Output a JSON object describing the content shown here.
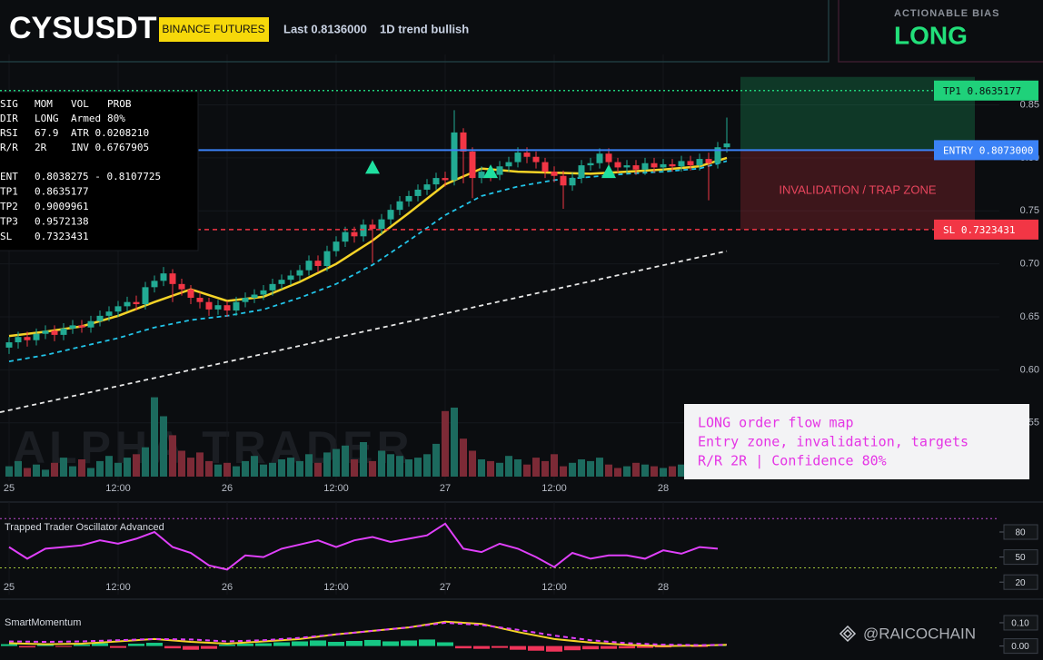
{
  "header": {
    "symbol": "CYSUSDT",
    "exchange": "BINANCE FUTURES",
    "last": "Last 0.8136000",
    "trend": "1D trend bullish",
    "bias_label": "ACTIONABLE BIAS",
    "bias": "LONG"
  },
  "info_panel": {
    "rows": [
      [
        "SIG",
        "MOM",
        "VOL",
        "PROB"
      ],
      [
        "DIR",
        "LONG",
        "Armed",
        "80%"
      ],
      [
        "RSI",
        "67.9",
        "ATR 0.0208210"
      ],
      [
        "R/R",
        "2R",
        "INV 0.6767905"
      ],
      [
        "ENT",
        "0.8038275 - 0.8107725"
      ],
      [
        "TP1",
        "0.8635177"
      ],
      [
        "TP2",
        "0.9009961"
      ],
      [
        "TP3",
        "0.9572138"
      ],
      [
        "SL",
        "0.7323431"
      ]
    ]
  },
  "annotation": {
    "lines": [
      "LONG order flow map",
      "Entry zone, invalidation, targets",
      "R/R 2R | Confidence 80%"
    ]
  },
  "watermark": "ALPHA TRADER",
  "footer_watermark": "@RAICOCHAIN",
  "chart_data": [
    {
      "type": "candlestick",
      "x": [
        0,
        1,
        2,
        3,
        4,
        5,
        6,
        7,
        8,
        9,
        10,
        11,
        12,
        13,
        14,
        15,
        16,
        17,
        18,
        19,
        20,
        21,
        22,
        23,
        24,
        25,
        26,
        27,
        28,
        29,
        30,
        31,
        32,
        33,
        34,
        35,
        36,
        37,
        38,
        39,
        40,
        41,
        42,
        43,
        44,
        45,
        46,
        47,
        48,
        49,
        50,
        51,
        52,
        53,
        54,
        55,
        56,
        57,
        58,
        59,
        60,
        61,
        62,
        63,
        64,
        65,
        66,
        67,
        68,
        69,
        70,
        71,
        72,
        73,
        74,
        75,
        76,
        77,
        78,
        79
      ],
      "open": [
        0.621,
        0.626,
        0.631,
        0.628,
        0.634,
        0.637,
        0.633,
        0.639,
        0.642,
        0.64,
        0.646,
        0.651,
        0.655,
        0.66,
        0.664,
        0.662,
        0.678,
        0.684,
        0.691,
        0.681,
        0.676,
        0.668,
        0.664,
        0.657,
        0.661,
        0.656,
        0.664,
        0.668,
        0.671,
        0.675,
        0.681,
        0.685,
        0.689,
        0.694,
        0.703,
        0.698,
        0.712,
        0.721,
        0.73,
        0.726,
        0.737,
        0.733,
        0.742,
        0.751,
        0.759,
        0.764,
        0.77,
        0.775,
        0.781,
        0.779,
        0.824,
        0.806,
        0.781,
        0.787,
        0.784,
        0.792,
        0.796,
        0.805,
        0.801,
        0.796,
        0.787,
        0.783,
        0.774,
        0.781,
        0.793,
        0.795,
        0.804,
        0.796,
        0.791,
        0.793,
        0.789,
        0.795,
        0.791,
        0.794,
        0.792,
        0.797,
        0.793,
        0.799,
        0.795,
        0.81
      ],
      "high": [
        0.631,
        0.636,
        0.636,
        0.639,
        0.642,
        0.642,
        0.644,
        0.647,
        0.647,
        0.651,
        0.656,
        0.66,
        0.665,
        0.669,
        0.67,
        0.683,
        0.689,
        0.697,
        0.695,
        0.686,
        0.68,
        0.673,
        0.668,
        0.666,
        0.665,
        0.669,
        0.673,
        0.676,
        0.68,
        0.686,
        0.69,
        0.694,
        0.699,
        0.708,
        0.708,
        0.717,
        0.726,
        0.735,
        0.735,
        0.742,
        0.742,
        0.747,
        0.756,
        0.764,
        0.769,
        0.775,
        0.78,
        0.786,
        0.787,
        0.845,
        0.828,
        0.81,
        0.792,
        0.792,
        0.797,
        0.801,
        0.81,
        0.81,
        0.806,
        0.8,
        0.792,
        0.788,
        0.786,
        0.798,
        0.8,
        0.809,
        0.809,
        0.8,
        0.798,
        0.798,
        0.8,
        0.8,
        0.799,
        0.799,
        0.802,
        0.802,
        0.804,
        0.805,
        0.815,
        0.838
      ],
      "low": [
        0.615,
        0.62,
        0.622,
        0.623,
        0.629,
        0.627,
        0.628,
        0.634,
        0.635,
        0.635,
        0.641,
        0.646,
        0.65,
        0.655,
        0.656,
        0.657,
        0.673,
        0.679,
        0.664,
        0.67,
        0.662,
        0.658,
        0.651,
        0.652,
        0.65,
        0.651,
        0.659,
        0.663,
        0.666,
        0.67,
        0.676,
        0.68,
        0.684,
        0.689,
        0.692,
        0.693,
        0.707,
        0.716,
        0.72,
        0.721,
        0.701,
        0.728,
        0.737,
        0.746,
        0.754,
        0.759,
        0.765,
        0.77,
        0.773,
        0.774,
        0.776,
        0.762,
        0.776,
        0.778,
        0.779,
        0.787,
        0.791,
        0.795,
        0.79,
        0.781,
        0.777,
        0.752,
        0.769,
        0.776,
        0.788,
        0.79,
        0.791,
        0.786,
        0.786,
        0.784,
        0.784,
        0.786,
        0.786,
        0.787,
        0.787,
        0.788,
        0.788,
        0.76,
        0.79,
        0.805
      ],
      "close": [
        0.626,
        0.631,
        0.628,
        0.634,
        0.637,
        0.633,
        0.639,
        0.642,
        0.64,
        0.646,
        0.651,
        0.655,
        0.66,
        0.664,
        0.662,
        0.678,
        0.684,
        0.691,
        0.681,
        0.676,
        0.668,
        0.664,
        0.657,
        0.661,
        0.656,
        0.664,
        0.668,
        0.671,
        0.675,
        0.681,
        0.685,
        0.689,
        0.694,
        0.703,
        0.698,
        0.712,
        0.721,
        0.73,
        0.726,
        0.737,
        0.733,
        0.742,
        0.751,
        0.759,
        0.764,
        0.77,
        0.775,
        0.781,
        0.779,
        0.824,
        0.806,
        0.781,
        0.787,
        0.784,
        0.792,
        0.796,
        0.805,
        0.801,
        0.796,
        0.787,
        0.783,
        0.774,
        0.781,
        0.793,
        0.795,
        0.804,
        0.796,
        0.791,
        0.793,
        0.789,
        0.795,
        0.791,
        0.794,
        0.792,
        0.797,
        0.793,
        0.799,
        0.795,
        0.81,
        0.8136
      ],
      "colors": {
        "up": "#22ab94",
        "down": "#f23645"
      },
      "volume": {
        "values": [
          12,
          18,
          10,
          14,
          8,
          16,
          22,
          12,
          20,
          10,
          18,
          24,
          16,
          22,
          26,
          34,
          92,
          70,
          48,
          30,
          22,
          28,
          18,
          14,
          16,
          12,
          18,
          24,
          14,
          16,
          20,
          22,
          18,
          26,
          16,
          28,
          32,
          36,
          20,
          40,
          18,
          30,
          26,
          24,
          20,
          22,
          26,
          38,
          76,
          80,
          44,
          30,
          20,
          18,
          16,
          24,
          20,
          14,
          22,
          18,
          26,
          12,
          16,
          20,
          18,
          22,
          14,
          10,
          12,
          16,
          14,
          12,
          10,
          12,
          14,
          10,
          12,
          14,
          10,
          12
        ],
        "up_color": "#1c6a5e",
        "down_color": "#7c2a36"
      },
      "lines": [
        {
          "color": "#e8e8e8",
          "style": "dashed",
          "x": [
            -1,
            79
          ],
          "values": [
            0.56,
            0.712
          ]
        },
        {
          "color": "#22c4e8",
          "style": "dashed",
          "x": [
            0,
            4,
            8,
            12,
            16,
            20,
            24,
            28,
            32,
            36,
            40,
            44,
            48,
            52,
            56,
            60,
            64,
            68,
            72,
            76,
            79
          ],
          "values": [
            0.608,
            0.614,
            0.622,
            0.63,
            0.64,
            0.647,
            0.651,
            0.657,
            0.668,
            0.681,
            0.699,
            0.722,
            0.746,
            0.764,
            0.773,
            0.779,
            0.782,
            0.785,
            0.787,
            0.79,
            0.797
          ]
        },
        {
          "color": "#f5d327",
          "style": "solid",
          "x": [
            0,
            4,
            8,
            12,
            16,
            20,
            24,
            28,
            32,
            36,
            40,
            44,
            48,
            52,
            56,
            60,
            64,
            68,
            72,
            76,
            79
          ],
          "values": [
            0.632,
            0.636,
            0.641,
            0.651,
            0.664,
            0.676,
            0.665,
            0.669,
            0.683,
            0.7,
            0.722,
            0.748,
            0.775,
            0.79,
            0.787,
            0.786,
            0.785,
            0.787,
            0.789,
            0.792,
            0.8
          ]
        }
      ],
      "signals": {
        "x": [
          40,
          53,
          66
        ],
        "values": [
          0.791,
          0.787,
          0.787
        ],
        "color": "#1fe0a0"
      },
      "levels": [
        {
          "name": "TP1",
          "value": 0.8635177,
          "value_label": "0.8635177",
          "color": "#1fd17a",
          "style": "dotted"
        },
        {
          "name": "ENTRY",
          "value": 0.8073,
          "value_label": "0.8073000",
          "color": "#3b82f6",
          "style": "solid"
        },
        {
          "name": "SL",
          "value": 0.7323431,
          "value_label": "0.7323431",
          "color": "#f23645",
          "style": "dashed"
        }
      ],
      "zone_label": "INVALIDATION / TRAP ZONE",
      "xlim": [
        -1,
        109
      ],
      "xticks": [
        {
          "value": 0,
          "label": "25"
        },
        {
          "value": 12,
          "label": "12:00"
        },
        {
          "value": 24,
          "label": "26"
        },
        {
          "value": 36,
          "label": "12:00"
        },
        {
          "value": 48,
          "label": "27"
        },
        {
          "value": 60,
          "label": "12:00"
        },
        {
          "value": 72,
          "label": "28"
        }
      ],
      "ylim": [
        0.495,
        0.889
      ],
      "yticks": [
        {
          "value": 0.55,
          "label": "0.55"
        },
        {
          "value": 0.6,
          "label": "0.60"
        },
        0.65,
        {
          "value": 0.7,
          "label": "0.70"
        },
        0.75,
        {
          "value": 0.8,
          "label": "0.80"
        },
        0.85
      ],
      "grid": true
    },
    {
      "type": "line",
      "title": "Trapped Trader Oscillator Advanced",
      "x": [
        0,
        2,
        4,
        6,
        8,
        10,
        12,
        14,
        16,
        18,
        20,
        22,
        24,
        26,
        28,
        30,
        32,
        34,
        36,
        38,
        40,
        42,
        44,
        46,
        48,
        50,
        52,
        54,
        56,
        58,
        60,
        62,
        64,
        66,
        68,
        70,
        72,
        74,
        76,
        78
      ],
      "series": [
        {
          "color": "#e040fb",
          "values": [
            62,
            48,
            60,
            62,
            64,
            70,
            66,
            72,
            80,
            62,
            55,
            40,
            35,
            52,
            50,
            60,
            65,
            70,
            62,
            70,
            74,
            68,
            72,
            76,
            90,
            60,
            56,
            66,
            60,
            50,
            38,
            55,
            48,
            52,
            52,
            48,
            58,
            54,
            62,
            60
          ]
        }
      ],
      "bands": [
        {
          "value": 96,
          "color": "#c04ad0"
        },
        {
          "value": 37,
          "color": "#a4c639"
        }
      ],
      "xlim": [
        -1,
        109
      ],
      "xticks": [
        {
          "value": 0,
          "label": "25"
        },
        {
          "value": 12,
          "label": "12:00"
        },
        {
          "value": 24,
          "label": "26"
        },
        {
          "value": 36,
          "label": "12:00"
        },
        {
          "value": 48,
          "label": "27"
        },
        {
          "value": 60,
          "label": "12:00"
        },
        {
          "value": 72,
          "label": "28"
        }
      ],
      "ylim": [
        5,
        105
      ],
      "yticks": [
        20,
        50,
        80
      ]
    },
    {
      "type": "line",
      "title": "SmartMomentum",
      "x": [
        0,
        4,
        8,
        12,
        16,
        20,
        24,
        28,
        32,
        36,
        40,
        44,
        48,
        52,
        56,
        60,
        64,
        68,
        72,
        76,
        79
      ],
      "series": [
        {
          "color": "#f5d327",
          "style": "solid",
          "values": [
            0.012,
            0.008,
            0.01,
            0.02,
            0.03,
            0.018,
            0.01,
            0.02,
            0.03,
            0.05,
            0.065,
            0.08,
            0.105,
            0.095,
            0.06,
            0.03,
            0.015,
            0.005,
            0,
            0.002,
            0.005
          ]
        },
        {
          "color": "#e040fb",
          "style": "dashed",
          "values": [
            0.02,
            0.018,
            0.02,
            0.025,
            0.03,
            0.028,
            0.02,
            0.025,
            0.035,
            0.05,
            0.065,
            0.08,
            0.1,
            0.09,
            0.07,
            0.045,
            0.025,
            0.012,
            0.006,
            0.004,
            0.005
          ]
        }
      ],
      "histogram": {
        "x": [
          0,
          2,
          4,
          6,
          8,
          10,
          12,
          14,
          16,
          18,
          20,
          22,
          24,
          26,
          28,
          30,
          32,
          34,
          36,
          38,
          40,
          42,
          44,
          46,
          48,
          50,
          52,
          54,
          56,
          58,
          60,
          62,
          64,
          66,
          68,
          70,
          72,
          74,
          76,
          78
        ],
        "values": [
          0.008,
          -0.006,
          0.01,
          -0.004,
          0.006,
          0.012,
          -0.008,
          0.01,
          0.014,
          -0.01,
          -0.016,
          -0.012,
          0.006,
          0.01,
          0.012,
          0.016,
          0.02,
          0.024,
          0.018,
          0.022,
          0.026,
          0.02,
          0.024,
          0.028,
          0.016,
          -0.01,
          -0.012,
          -0.008,
          -0.016,
          -0.02,
          -0.024,
          -0.018,
          -0.014,
          -0.012,
          -0.01,
          -0.008,
          -0.006,
          0.004,
          -0.004,
          0.004
        ],
        "up_color": "#16c784",
        "down_color": "#f0345a"
      },
      "xlim": [
        -1,
        109
      ],
      "ylim": [
        -0.06,
        0.17
      ],
      "yticks": [
        {
          "value": 0.1,
          "label": "0.10"
        },
        {
          "value": 0,
          "label": "0.00"
        }
      ]
    }
  ]
}
